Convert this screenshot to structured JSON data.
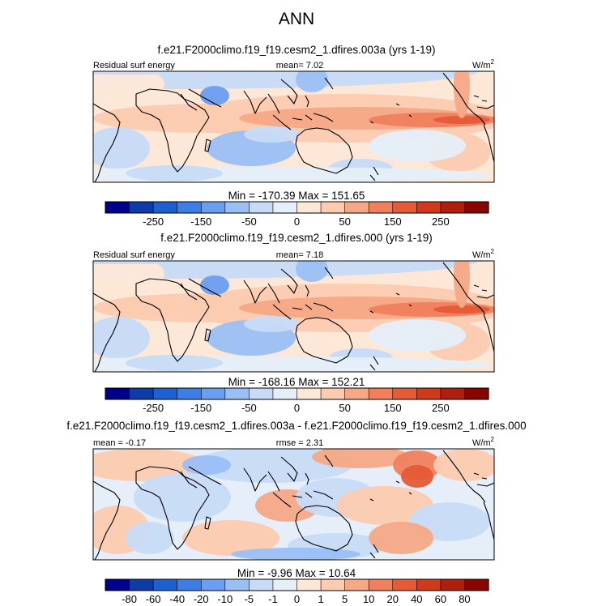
{
  "title": "ANN",
  "panels": [
    {
      "title": "f.e21.F2000climo.f19_f19.cesm2_1.dfires.003a (yrs 1-19)",
      "left_label": "Residual surf energy",
      "center_label": "mean=  7.02",
      "units_base": "W/m",
      "units_exp": "2",
      "minmax": "Min = -170.39 Max = 151.65",
      "colorbar_labels": [
        "-250",
        "-150",
        "-50",
        "0",
        "50",
        "150",
        "250"
      ],
      "colorbar_colors": [
        "#00008c",
        "#0b3ca8",
        "#1e5fd2",
        "#3c7ee6",
        "#6a9ef0",
        "#9bbff5",
        "#c7dbf7",
        "#e5eef9",
        "#fde8d8",
        "#fccbb0",
        "#f6a886",
        "#f07f5e",
        "#e55a37",
        "#d03a1c",
        "#ae1f0c",
        "#880500"
      ]
    },
    {
      "title": "f.e21.F2000climo.f19_f19.cesm2_1.dfires.000 (yrs 1-19)",
      "left_label": "Residual surf energy",
      "center_label": "mean=  7.18",
      "units_base": "W/m",
      "units_exp": "2",
      "minmax": "Min = -168.16 Max = 152.21",
      "colorbar_labels": [
        "-250",
        "-150",
        "-50",
        "0",
        "50",
        "150",
        "250"
      ],
      "colorbar_colors": [
        "#00008c",
        "#0b3ca8",
        "#1e5fd2",
        "#3c7ee6",
        "#6a9ef0",
        "#9bbff5",
        "#c7dbf7",
        "#e5eef9",
        "#fde8d8",
        "#fccbb0",
        "#f6a886",
        "#f07f5e",
        "#e55a37",
        "#d03a1c",
        "#ae1f0c",
        "#880500"
      ]
    },
    {
      "title": "f.e21.F2000climo.f19_f19.cesm2_1.dfires.003a - f.e21.F2000climo.f19_f19.cesm2_1.dfires.000",
      "left_label": "mean = -0.17",
      "center_label": "rmse =  2.31",
      "units_base": "W/m",
      "units_exp": "2",
      "minmax": "Min =  -9.96 Max = 10.64",
      "colorbar_labels": [
        "-80",
        "-60",
        "-40",
        "-20",
        "-10",
        "-5",
        "-1",
        "0",
        "1",
        "5",
        "10",
        "20",
        "40",
        "60",
        "80"
      ],
      "colorbar_colors": [
        "#00008c",
        "#0b3ca8",
        "#1e5fd2",
        "#3c7ee6",
        "#6a9ef0",
        "#9bbff5",
        "#c7dbf7",
        "#e5eef9",
        "#fde8d8",
        "#fccbb0",
        "#f6a886",
        "#f07f5e",
        "#e55a37",
        "#d03a1c",
        "#ae1f0c",
        "#880500"
      ]
    }
  ],
  "chart_data": [
    {
      "type": "heatmap",
      "title": "f.e21.F2000climo.f19_f19.cesm2_1.dfires.003a (yrs 1-19)",
      "variable": "Residual surf energy",
      "units": "W/m2",
      "mean": 7.02,
      "min": -170.39,
      "max": 151.65,
      "colorbar_levels": [
        -250,
        -150,
        -50,
        0,
        50,
        150,
        250
      ]
    },
    {
      "type": "heatmap",
      "title": "f.e21.F2000climo.f19_f19.cesm2_1.dfires.000 (yrs 1-19)",
      "variable": "Residual surf energy",
      "units": "W/m2",
      "mean": 7.18,
      "min": -168.16,
      "max": 152.21,
      "colorbar_levels": [
        -250,
        -150,
        -50,
        0,
        50,
        150,
        250
      ]
    },
    {
      "type": "heatmap",
      "title": "f.e21.F2000climo.f19_f19.cesm2_1.dfires.003a - f.e21.F2000climo.f19_f19.cesm2_1.dfires.000",
      "units": "W/m2",
      "mean": -0.17,
      "rmse": 2.31,
      "min": -9.96,
      "max": 10.64,
      "colorbar_levels": [
        -80,
        -60,
        -40,
        -20,
        -10,
        -5,
        -1,
        0,
        1,
        5,
        10,
        20,
        40,
        60,
        80
      ]
    }
  ]
}
